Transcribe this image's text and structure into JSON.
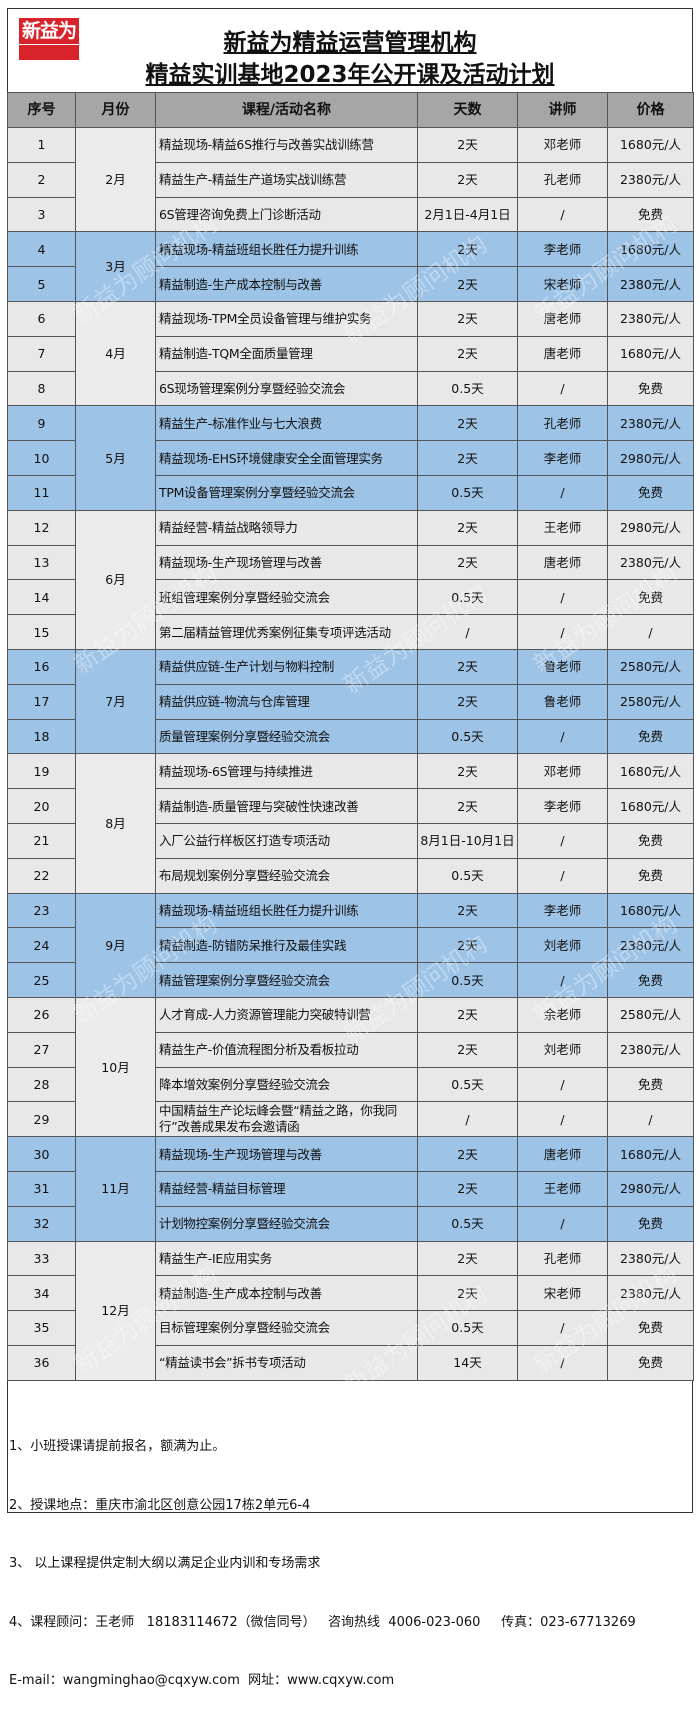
{
  "logo": {
    "text": "新益为"
  },
  "title_line1": "新益为精益运营管理机构",
  "title_line2": "精益实训基地2023年公开课及活动计划",
  "watermark": "新益为顾问机构",
  "columns": [
    "序号",
    "月份",
    "课程/活动名称",
    "天数",
    "讲师",
    "价格"
  ],
  "months": [
    {
      "label": "2月",
      "highlight": false,
      "rows": [
        [
          "1",
          "精益现场-精益6S推行与改善实战训练营",
          "2天",
          "邓老师",
          "1680元/人"
        ],
        [
          "2",
          "精益生产-精益生产道场实战训练营",
          "2天",
          "孔老师",
          "2380元/人"
        ],
        [
          "3",
          "6S管理咨询免费上门诊断活动",
          "2月1日-4月1日",
          "/",
          "免费"
        ]
      ]
    },
    {
      "label": "3月",
      "highlight": true,
      "rows": [
        [
          "4",
          "精益现场-精益班组长胜任力提升训练",
          "2天",
          "李老师",
          "1680元/人"
        ],
        [
          "5",
          "精益制造-生产成本控制与改善",
          "2天",
          "宋老师",
          "2380元/人"
        ]
      ]
    },
    {
      "label": "4月",
      "highlight": false,
      "rows": [
        [
          "6",
          "精益现场-TPM全员设备管理与维护实务",
          "2天",
          "唐老师",
          "2380元/人"
        ],
        [
          "7",
          "精益制造-TQM全面质量管理",
          "2天",
          "唐老师",
          "1680元/人"
        ],
        [
          "8",
          "6S现场管理案例分享暨经验交流会",
          "0.5天",
          "/",
          "免费"
        ]
      ]
    },
    {
      "label": "5月",
      "highlight": true,
      "rows": [
        [
          "9",
          "精益生产-标准作业与七大浪费",
          "2天",
          "孔老师",
          "2380元/人"
        ],
        [
          "10",
          "精益现场-EHS环境健康安全全面管理实务",
          "2天",
          "李老师",
          "2980元/人"
        ],
        [
          "11",
          "TPM设备管理案例分享暨经验交流会",
          "0.5天",
          "/",
          "免费"
        ]
      ]
    },
    {
      "label": "6月",
      "highlight": false,
      "rows": [
        [
          "12",
          "精益经营-精益战略领导力",
          "2天",
          "王老师",
          "2980元/人"
        ],
        [
          "13",
          "精益现场-生产现场管理与改善",
          "2天",
          "唐老师",
          "2380元/人"
        ],
        [
          "14",
          "班组管理案例分享暨经验交流会",
          "0.5天",
          "/",
          "免费"
        ],
        [
          "15",
          "第二届精益管理优秀案例征集专项评选活动",
          "/",
          "/",
          "/"
        ]
      ]
    },
    {
      "label": "7月",
      "highlight": true,
      "rows": [
        [
          "16",
          "精益供应链-生产计划与物料控制",
          "2天",
          "鲁老师",
          "2580元/人"
        ],
        [
          "17",
          "精益供应链-物流与仓库管理",
          "2天",
          "鲁老师",
          "2580元/人"
        ],
        [
          "18",
          "质量管理案例分享暨经验交流会",
          "0.5天",
          "/",
          "免费"
        ]
      ]
    },
    {
      "label": "8月",
      "highlight": false,
      "rows": [
        [
          "19",
          "精益现场-6S管理与持续推进",
          "2天",
          "邓老师",
          "1680元/人"
        ],
        [
          "20",
          "精益制造-质量管理与突破性快速改善",
          "2天",
          "李老师",
          "1680元/人"
        ],
        [
          "21",
          "入厂公益行样板区打造专项活动",
          "8月1日-10月1日",
          "/",
          "免费"
        ],
        [
          "22",
          "布局规划案例分享暨经验交流会",
          "0.5天",
          "/",
          "免费"
        ]
      ]
    },
    {
      "label": "9月",
      "highlight": true,
      "rows": [
        [
          "23",
          "精益现场-精益班组长胜任力提升训练",
          "2天",
          "李老师",
          "1680元/人"
        ],
        [
          "24",
          "精益制造-防错防呆推行及最佳实践",
          "2天",
          "刘老师",
          "2380元/人"
        ],
        [
          "25",
          "精益管理案例分享暨经验交流会",
          "0.5天",
          "/",
          "免费"
        ]
      ]
    },
    {
      "label": "10月",
      "highlight": false,
      "rows": [
        [
          "26",
          "人才育成-人力资源管理能力突破特训营",
          "2天",
          "余老师",
          "2580元/人"
        ],
        [
          "27",
          "精益生产-价值流程图分析及看板拉动",
          "2天",
          "刘老师",
          "2380元/人"
        ],
        [
          "28",
          "降本增效案例分享暨经验交流会",
          "0.5天",
          "/",
          "免费"
        ],
        [
          "29",
          "中国精益生产论坛峰会暨“精益之路，你我同行”改善成果发布会邀请函",
          "/",
          "/",
          "/"
        ]
      ]
    },
    {
      "label": "11月",
      "highlight": true,
      "rows": [
        [
          "30",
          "精益现场-生产现场管理与改善",
          "2天",
          "唐老师",
          "1680元/人"
        ],
        [
          "31",
          "精益经营-精益目标管理",
          "2天",
          "王老师",
          "2980元/人"
        ],
        [
          "32",
          "计划物控案例分享暨经验交流会",
          "0.5天",
          "/",
          "免费"
        ]
      ]
    },
    {
      "label": "12月",
      "highlight": false,
      "rows": [
        [
          "33",
          "精益生产-IE应用实务",
          "2天",
          "孔老师",
          "2380元/人"
        ],
        [
          "34",
          "精益制造-生产成本控制与改善",
          "2天",
          "宋老师",
          "2380元/人"
        ],
        [
          "35",
          "目标管理案例分享暨经验交流会",
          "0.5天",
          "/",
          "免费"
        ],
        [
          "36",
          "  “精益读书会”拆书专项活动",
          "14天",
          "/",
          "免费"
        ]
      ]
    }
  ],
  "colors": {
    "header": "#a6a6a6",
    "row": "#e8e8e8",
    "highlight": "#9dc3e6",
    "logo": "#d9232a"
  },
  "notes": [
    "1、小班授课请提前报名，额满为止。",
    "2、授课地点：重庆市渝北区创意公园17栋2单元6-4",
    "3、 以上课程提供定制大纲以满足企业内训和专场需求",
    "4、课程顾问：王老师   18183114672（微信同号）   咨询热线  4006-023-060     传真：023-67713269",
    "E-mail：wangminghao@cqxyw.com  网址：www.cqxyw.com"
  ]
}
